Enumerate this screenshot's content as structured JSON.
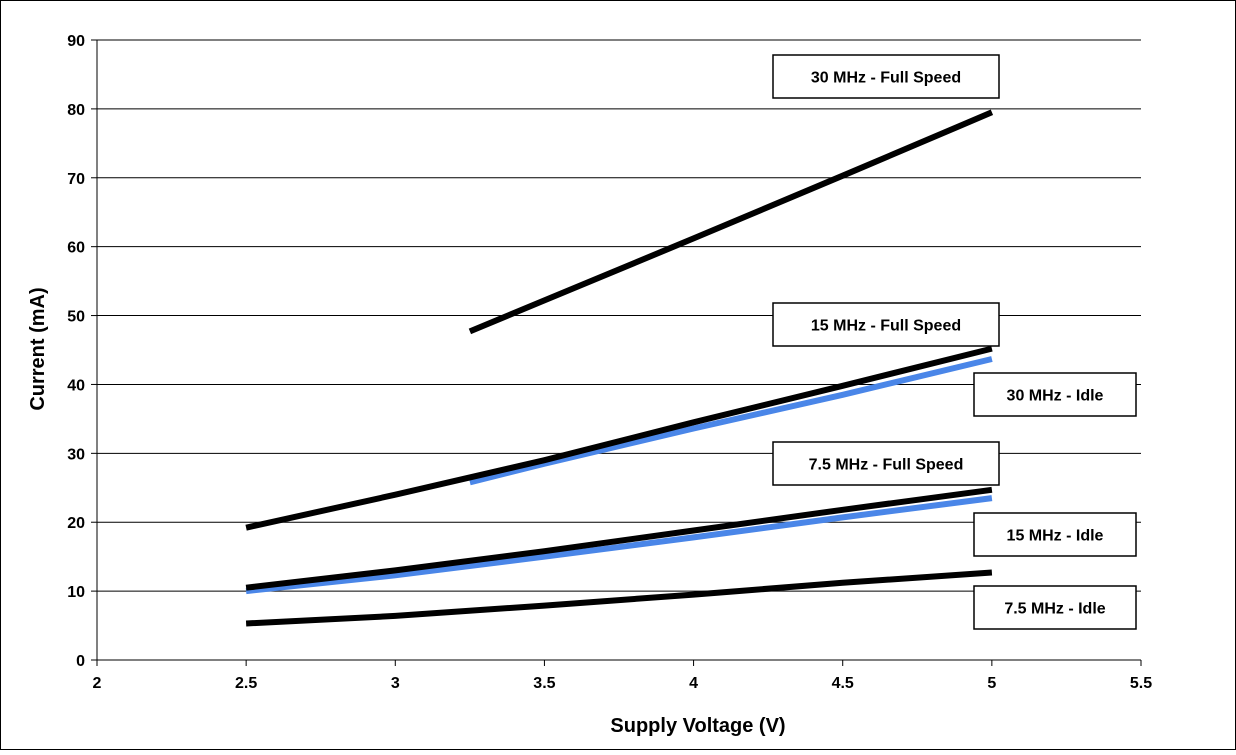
{
  "chart_data": {
    "type": "line",
    "title": "",
    "xlabel": "Supply Voltage (V)",
    "ylabel": "Current (mA)",
    "xlim": [
      2,
      5.5
    ],
    "ylim": [
      0,
      90
    ],
    "x_ticks": [
      "2",
      "2.5",
      "3",
      "3.5",
      "4",
      "4.5",
      "5",
      "5.5"
    ],
    "y_ticks": [
      "0",
      "10",
      "20",
      "30",
      "40",
      "50",
      "60",
      "70",
      "80",
      "90"
    ],
    "grid": "horizontal",
    "series_colors": {
      "full_speed": "#000000",
      "idle": "#4a86e8"
    },
    "series": [
      {
        "name": "30 MHz - Full Speed",
        "color": "#000000",
        "x": [
          3.25,
          3.5,
          4,
          4.5,
          5
        ],
        "y": [
          47.7,
          52.2,
          61.2,
          70.3,
          79.5
        ]
      },
      {
        "name": "15 MHz - Full Speed",
        "color": "#000000",
        "x": [
          2.5,
          3,
          3.5,
          4,
          4.5,
          5
        ],
        "y": [
          19.2,
          24.0,
          29.0,
          34.5,
          39.8,
          45.2
        ]
      },
      {
        "name": "30 MHz - Idle",
        "color": "#4a86e8",
        "x": [
          3.25,
          3.5,
          4,
          4.5,
          5
        ],
        "y": [
          25.8,
          28.5,
          33.6,
          38.5,
          43.7
        ]
      },
      {
        "name": "7.5 MHz - Full Speed",
        "color": "#000000",
        "x": [
          2.5,
          3,
          3.5,
          4,
          4.5,
          5
        ],
        "y": [
          10.5,
          13.0,
          15.8,
          18.8,
          21.8,
          24.7
        ]
      },
      {
        "name": "15 MHz - Idle",
        "color": "#4a86e8",
        "x": [
          2.5,
          3,
          3.5,
          4,
          4.5,
          5
        ],
        "y": [
          10.0,
          12.3,
          15.0,
          17.8,
          20.7,
          23.5
        ]
      },
      {
        "name": "7.5 MHz - Idle",
        "color": "#000000",
        "x": [
          2.5,
          3,
          3.5,
          4,
          4.5,
          5
        ],
        "y": [
          5.3,
          6.4,
          7.9,
          9.5,
          11.2,
          12.7
        ]
      }
    ],
    "annotations": [
      {
        "text": "30 MHz - Full Speed"
      },
      {
        "text": "15 MHz - Full Speed"
      },
      {
        "text": "30 MHz - Idle"
      },
      {
        "text": "7.5 MHz - Full Speed"
      },
      {
        "text": "15 MHz - Idle"
      },
      {
        "text": "7.5 MHz - Idle"
      }
    ]
  }
}
